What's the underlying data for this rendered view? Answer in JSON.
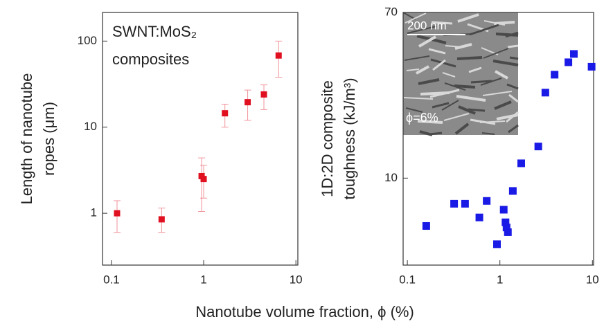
{
  "x_label": "Nanotube volume fraction, ϕ (%)",
  "chart_data": [
    {
      "type": "scatter",
      "ylabel": [
        "Length of nanotube",
        "ropes (μm)"
      ],
      "annotation": [
        "SWNT:MoS₂",
        "composites"
      ],
      "xscale": "log",
      "yscale": "log",
      "xlim": [
        0.08,
        10.5
      ],
      "ylim": [
        0.25,
        215
      ],
      "xticks": [
        0.1,
        1,
        10
      ],
      "yticks": [
        1,
        10,
        100
      ],
      "series": [
        {
          "color": "#e01020",
          "x": [
            0.115,
            0.35,
            0.95,
            1.0,
            1.7,
            3.0,
            4.5,
            6.5
          ],
          "values": [
            1.0,
            0.85,
            2.7,
            2.5,
            14.5,
            19.5,
            24,
            68
          ],
          "y_lower": [
            0.6,
            0.6,
            1.05,
            1.5,
            10,
            12,
            16,
            38
          ],
          "y_upper": [
            1.4,
            1.15,
            4.4,
            3.6,
            18.5,
            27,
            31,
            100
          ]
        }
      ]
    },
    {
      "type": "scatter",
      "ylabel": [
        "1D:2D composite",
        "toughness (kJ/m³)"
      ],
      "inset": [
        "200 nm",
        "ϕ=6%"
      ],
      "xscale": "log",
      "yscale": "log",
      "xlim": [
        0.09,
        10.3
      ],
      "ylim": [
        3.6,
        70
      ],
      "xticks": [
        0.1,
        1,
        10
      ],
      "yticks": [
        10,
        70
      ],
      "series": [
        {
          "color": "#1a1ae6",
          "x": [
            0.16,
            0.32,
            0.42,
            0.6,
            0.72,
            0.93,
            1.1,
            1.15,
            1.18,
            1.22,
            1.38,
            1.7,
            2.6,
            3.1,
            3.9,
            5.5,
            6.3,
            9.8
          ],
          "values": [
            5.7,
            7.4,
            7.4,
            6.3,
            7.65,
            4.6,
            6.9,
            5.95,
            5.6,
            5.3,
            8.6,
            11.9,
            14.5,
            27.3,
            33.7,
            39,
            43,
            37
          ]
        }
      ]
    }
  ]
}
